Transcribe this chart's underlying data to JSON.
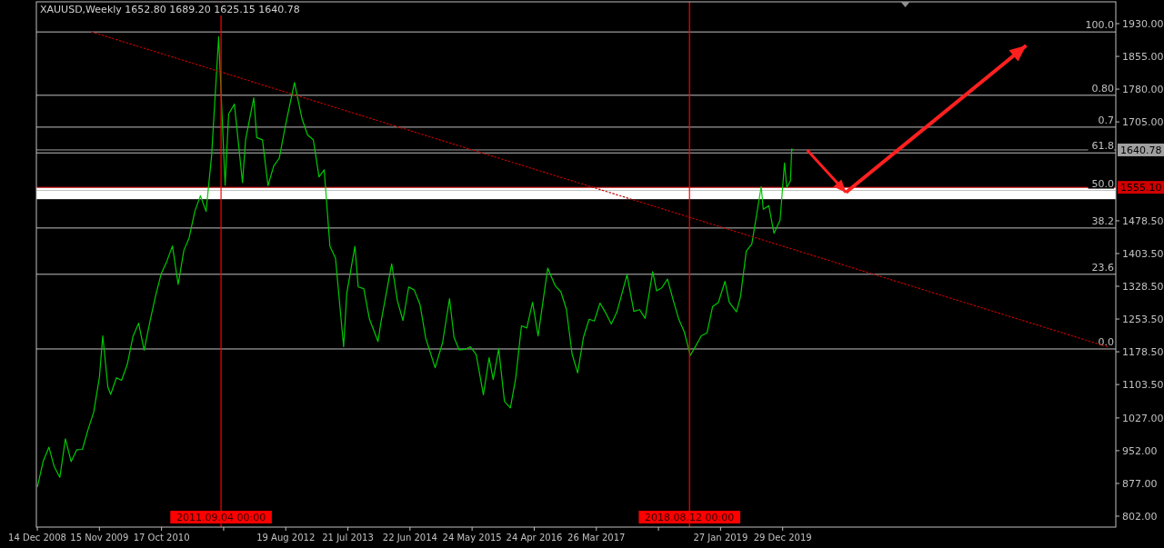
{
  "chart_data": {
    "type": "line",
    "title": "XAUUSD,Weekly  1652.80 1689.20 1625.15 1640.78",
    "xlim": [
      "2008-12-09",
      "2024-12-04"
    ],
    "xticks": [
      {
        "value": "2008-12-14",
        "label": "14 Dec 2008"
      },
      {
        "value": "2009-11-15",
        "label": "15 Nov 2009"
      },
      {
        "value": "2010-10-17",
        "label": "17 Oct 2010"
      },
      {
        "value": "2011-09-18",
        "label": null
      },
      {
        "value": "2012-08-19",
        "label": "19 Aug 2012"
      },
      {
        "value": "2013-07-21",
        "label": "21 Jul 2013"
      },
      {
        "value": "2014-06-22",
        "label": "22 Jun 2014"
      },
      {
        "value": "2015-05-24",
        "label": "24 May 2015"
      },
      {
        "value": "2016-04-24",
        "label": "24 Apr 2016"
      },
      {
        "value": "2017-03-26",
        "label": "26 Mar 2017"
      },
      {
        "value": "2018-02-25",
        "label": null
      },
      {
        "value": "2019-01-27",
        "label": "27 Jan 2019"
      },
      {
        "value": "2019-12-29",
        "label": "29 Dec 2019"
      }
    ],
    "ylim": [
      777,
      1980
    ],
    "yticks": [
      {
        "value": 1930,
        "label": "1930.00"
      },
      {
        "value": 1855,
        "label": "1855.00"
      },
      {
        "value": 1780,
        "label": "1780.00"
      },
      {
        "value": 1705,
        "label": "1705.00"
      },
      {
        "value": 1478.5,
        "label": "1478.50"
      },
      {
        "value": 1403.5,
        "label": "1403.50"
      },
      {
        "value": 1328.5,
        "label": "1328.50"
      },
      {
        "value": 1253.5,
        "label": "1253.50"
      },
      {
        "value": 1178.5,
        "label": "1178.50"
      },
      {
        "value": 1103.5,
        "label": "1103.50"
      },
      {
        "value": 1027,
        "label": "1027.00"
      },
      {
        "value": 952,
        "label": "952.00"
      },
      {
        "value": 877,
        "label": "877.00"
      },
      {
        "value": 802,
        "label": "802.00"
      }
    ],
    "grid": false,
    "series": [
      {
        "color": "#00c800",
        "x": [
          "2008-12-15",
          "2009-01-15",
          "2009-02-15",
          "2009-03-15",
          "2009-04-15",
          "2009-05-15",
          "2009-06-15",
          "2009-07-15",
          "2009-08-15",
          "2009-09-15",
          "2009-10-15",
          "2009-11-15",
          "2009-12-03",
          "2009-12-31",
          "2010-01-15",
          "2010-02-15",
          "2010-03-15",
          "2010-04-15",
          "2010-05-15",
          "2010-06-15",
          "2010-07-15",
          "2010-08-15",
          "2010-09-15",
          "2010-10-15",
          "2010-11-15",
          "2010-12-15",
          "2011-01-15",
          "2011-02-15",
          "2011-03-15",
          "2011-04-15",
          "2011-05-15",
          "2011-06-15",
          "2011-07-15",
          "2011-08-22",
          "2011-09-26",
          "2011-10-15",
          "2011-11-15",
          "2011-12-29",
          "2012-01-15",
          "2012-02-28",
          "2012-03-15",
          "2012-04-15",
          "2012-05-15",
          "2012-06-15",
          "2012-07-15",
          "2012-08-15",
          "2012-10-05",
          "2012-11-15",
          "2012-12-15",
          "2013-01-15",
          "2013-02-15",
          "2013-03-15",
          "2013-04-15",
          "2013-05-15",
          "2013-06-28",
          "2013-07-15",
          "2013-08-28",
          "2013-09-15",
          "2013-10-15",
          "2013-11-15",
          "2013-12-31",
          "2014-01-15",
          "2014-03-15",
          "2014-04-15",
          "2014-05-15",
          "2014-06-15",
          "2014-07-15",
          "2014-08-15",
          "2014-09-15",
          "2014-11-05",
          "2014-12-15",
          "2015-01-22",
          "2015-02-15",
          "2015-03-15",
          "2015-04-15",
          "2015-05-15",
          "2015-06-15",
          "2015-07-24",
          "2015-08-24",
          "2015-09-15",
          "2015-10-15",
          "2015-11-15",
          "2015-12-17",
          "2016-01-15",
          "2016-02-15",
          "2016-03-15",
          "2016-04-15",
          "2016-05-15",
          "2016-07-06",
          "2016-08-15",
          "2016-09-15",
          "2016-10-15",
          "2016-11-15",
          "2016-12-15",
          "2017-01-15",
          "2017-02-15",
          "2017-03-15",
          "2017-04-15",
          "2017-05-15",
          "2017-06-15",
          "2017-07-15",
          "2017-09-08",
          "2017-10-15",
          "2017-11-15",
          "2017-12-15",
          "2018-01-25",
          "2018-02-15",
          "2018-03-15",
          "2018-04-15",
          "2018-05-15",
          "2018-06-15",
          "2018-07-15",
          "2018-08-16",
          "2018-09-15",
          "2018-10-15",
          "2018-11-15",
          "2018-12-15",
          "2019-01-15",
          "2019-02-20",
          "2019-03-15",
          "2019-04-23",
          "2019-05-15",
          "2019-06-15",
          "2019-07-15",
          "2019-09-04",
          "2019-09-15",
          "2019-10-15",
          "2019-11-12",
          "2019-12-15",
          "2020-01-08",
          "2020-01-20",
          "2020-02-09",
          "2020-02-16",
          "2020-02-23"
        ],
        "values": [
          870,
          928,
          960,
          916,
          891,
          979,
          927,
          954,
          955,
          1001,
          1040,
          1120,
          1215,
          1097,
          1081,
          1119,
          1113,
          1150,
          1213,
          1244,
          1182,
          1247,
          1307,
          1357,
          1386,
          1421,
          1333,
          1411,
          1439,
          1500,
          1536,
          1500,
          1628,
          1900,
          1560,
          1723,
          1746,
          1566,
          1665,
          1760,
          1669,
          1664,
          1559,
          1604,
          1622,
          1692,
          1795,
          1712,
          1675,
          1664,
          1579,
          1595,
          1420,
          1393,
          1190,
          1312,
          1420,
          1327,
          1323,
          1253,
          1202,
          1244,
          1380,
          1295,
          1250,
          1327,
          1320,
          1287,
          1210,
          1142,
          1199,
          1300,
          1212,
          1183,
          1184,
          1190,
          1172,
          1080,
          1165,
          1115,
          1185,
          1065,
          1050,
          1118,
          1238,
          1233,
          1292,
          1215,
          1370,
          1330,
          1316,
          1276,
          1173,
          1130,
          1211,
          1253,
          1249,
          1290,
          1268,
          1242,
          1269,
          1355,
          1271,
          1275,
          1255,
          1362,
          1318,
          1325,
          1345,
          1298,
          1253,
          1224,
          1170,
          1192,
          1215,
          1222,
          1282,
          1291,
          1340,
          1292,
          1270,
          1305,
          1409,
          1425,
          1557,
          1505,
          1513,
          1450,
          1480,
          1611,
          1555,
          1570,
          1643,
          1640.78
        ]
      },
      {
        "type": "line",
        "color": "#c00000",
        "line_style": "dotted",
        "x": [
          "2009-10-04",
          "2024-10-27"
        ],
        "values": [
          1911,
          1189
        ]
      }
    ],
    "ref_lines": [
      {
        "axis": "y",
        "value": 1911,
        "color": "#c0c0c0"
      },
      {
        "axis": "y",
        "value": 1766,
        "color": "#c0c0c0"
      },
      {
        "axis": "y",
        "value": 1693,
        "color": "#c0c0c0"
      },
      {
        "axis": "y",
        "value": 1634,
        "color": "#c0c0c0"
      },
      {
        "axis": "y",
        "value": 1548,
        "color": "#c0c0c0"
      },
      {
        "axis": "y",
        "value": 1462,
        "color": "#c0c0c0"
      },
      {
        "axis": "y",
        "value": 1356,
        "color": "#c0c0c0"
      },
      {
        "axis": "y",
        "value": 1185,
        "color": "#c0c0c0"
      },
      {
        "axis": "y",
        "value": 1640.78,
        "label": "1640.78",
        "color": "#a0a0a0"
      },
      {
        "axis": "y",
        "value": 1555.1,
        "label": "1555.10",
        "color": "#d00000"
      },
      {
        "axis": "x",
        "value": "2011-09-04",
        "label": "2011.09.04 00:00",
        "color": "#ff0000"
      },
      {
        "axis": "x",
        "value": "2018-08-12",
        "label": "2018.08.12 00:00",
        "color": "#ff0000"
      }
    ],
    "annotations": [
      {
        "text": "100.0",
        "x": "2024-12-04",
        "y": 1911
      },
      {
        "text": "0.80",
        "x": "2024-12-04",
        "y": 1766
      },
      {
        "text": "0.7",
        "x": "2024-12-04",
        "y": 1693
      },
      {
        "text": "61.8",
        "x": "2024-12-04",
        "y": 1634
      },
      {
        "text": "50.0",
        "x": "2024-12-04",
        "y": 1548
      },
      {
        "text": "38.2",
        "x": "2024-12-04",
        "y": 1462
      },
      {
        "text": "23.6",
        "x": "2024-12-04",
        "y": 1356
      },
      {
        "text": "0.0",
        "x": "2024-12-04",
        "y": 1185
      }
    ],
    "bands": [
      {
        "axis": "y",
        "from": 1528,
        "to": 1555,
        "color": "#ffffff"
      }
    ]
  }
}
